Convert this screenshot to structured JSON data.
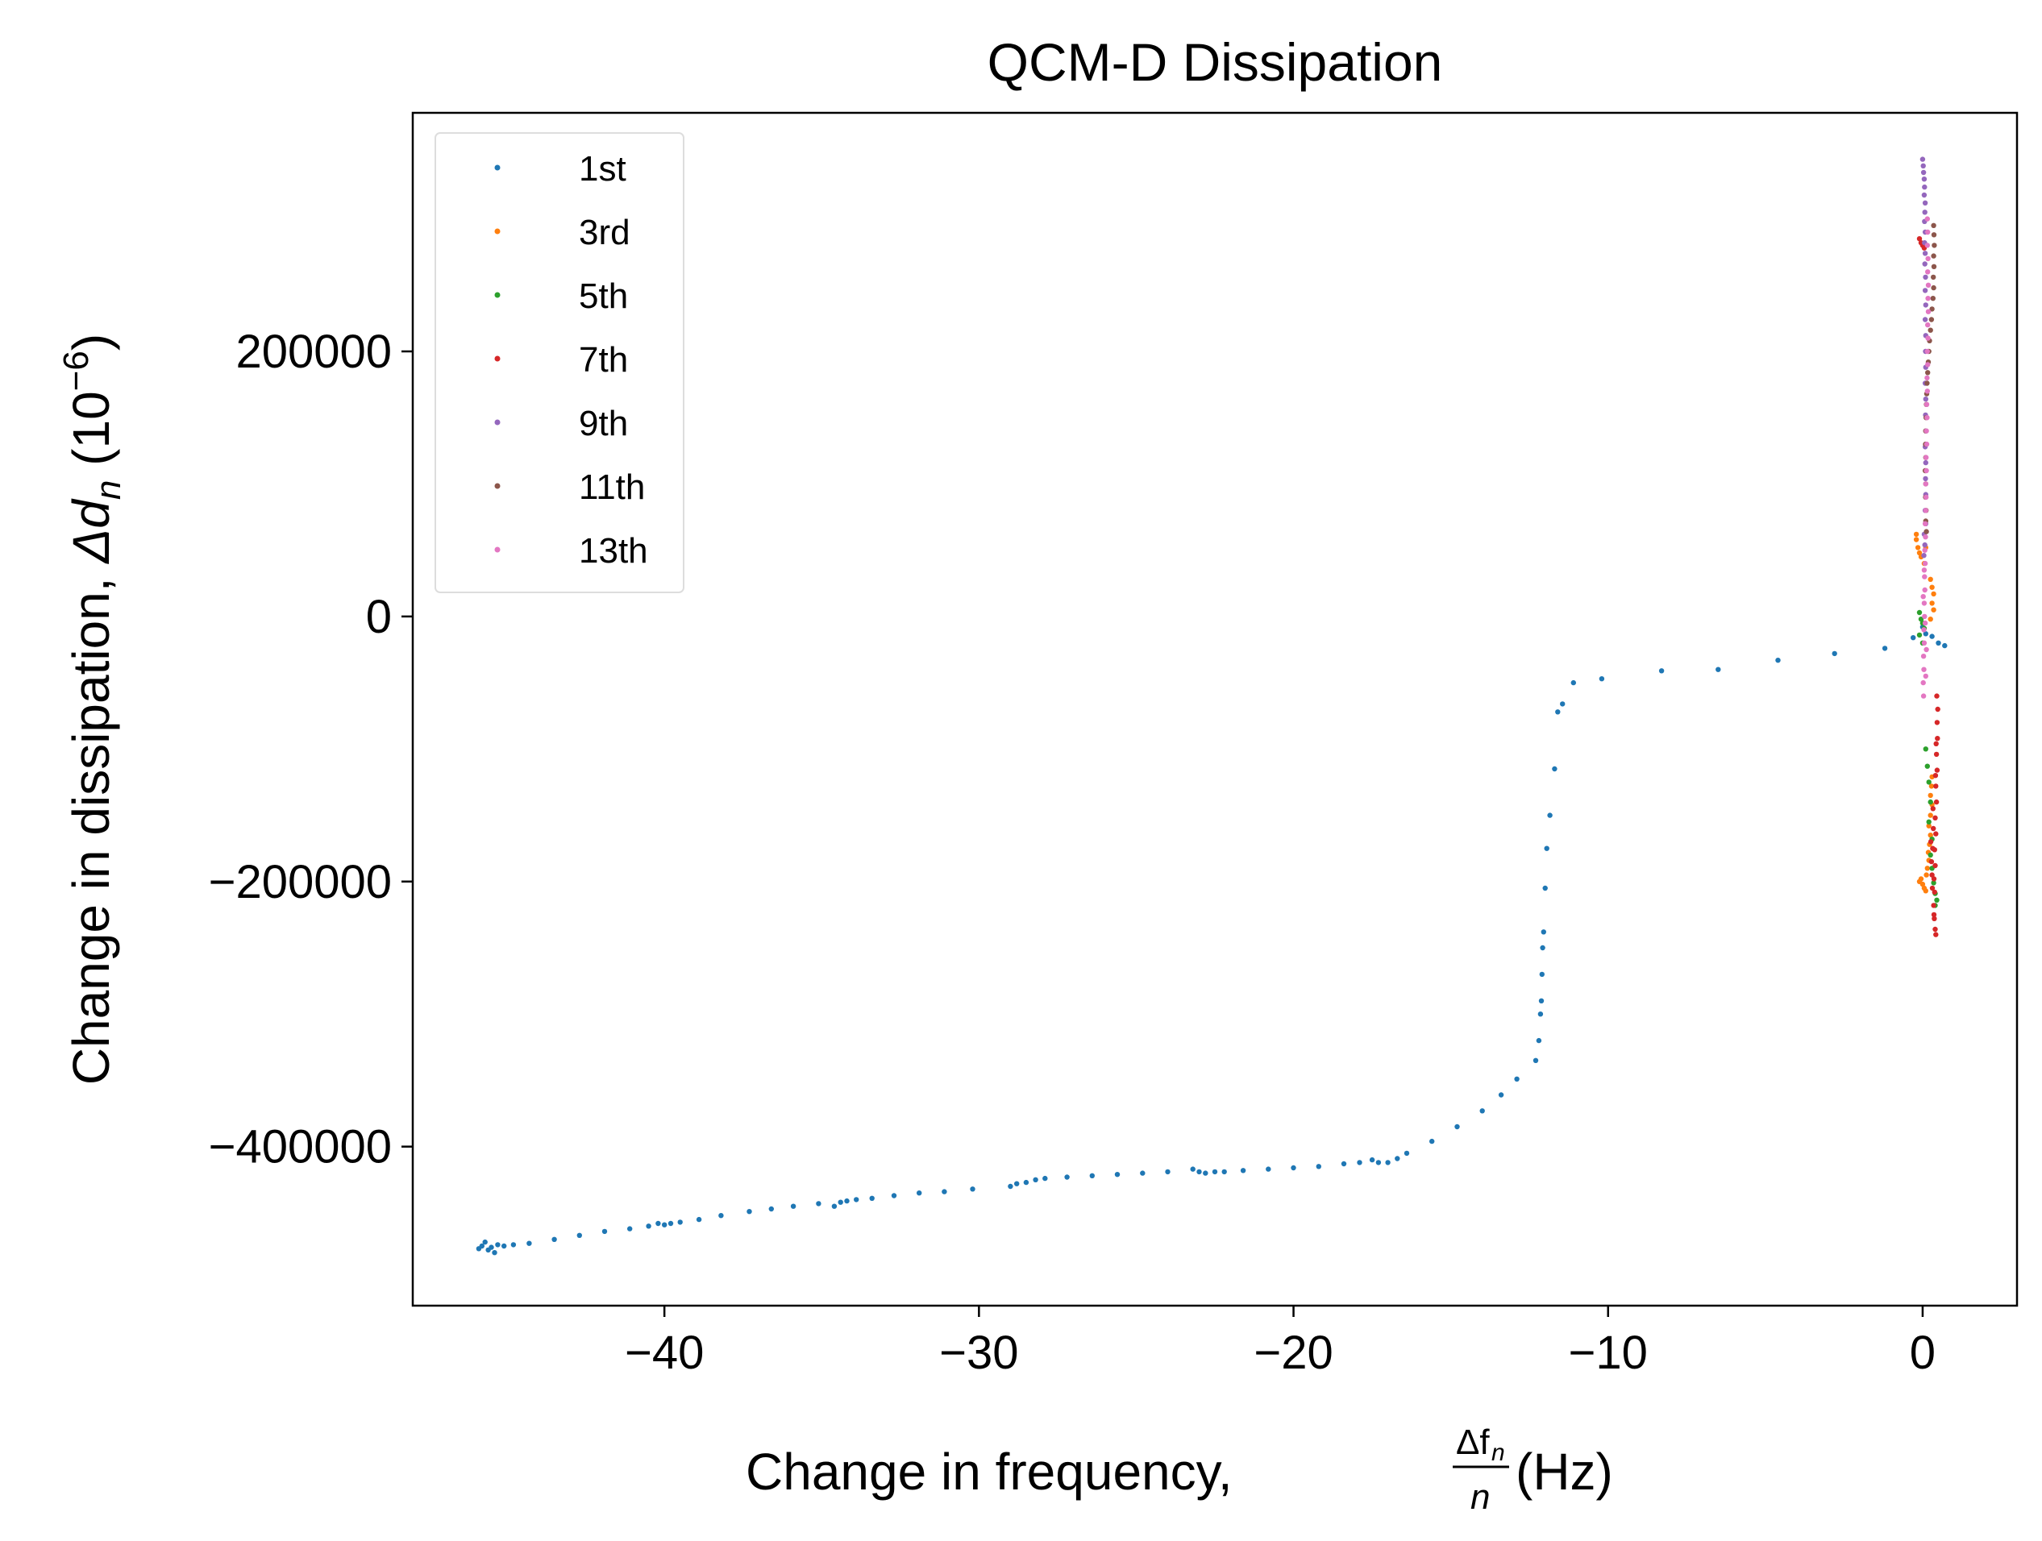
{
  "chart_data": {
    "type": "scatter",
    "title": "QCM-D Dissipation",
    "xlabel": {
      "prefix": "Change in frequency, ",
      "frac_num": "Δf",
      "frac_num_sub": "n",
      "frac_den": "n",
      "suffix": " (Hz)"
    },
    "ylabel": {
      "prefix": "Change in dissipation, ",
      "delta": "Δ",
      "var": "d",
      "var_sub": "n",
      "unit_open": " (10",
      "unit_exp": "−6",
      "unit_close": ")"
    },
    "xlim": [
      -48,
      3
    ],
    "ylim": [
      -520000,
      380000
    ],
    "xticks": [
      -40,
      -30,
      -20,
      -10,
      0
    ],
    "xtick_labels": [
      "−40",
      "−30",
      "−20",
      "−10",
      "0"
    ],
    "yticks": [
      -400000,
      -200000,
      0,
      200000
    ],
    "ytick_labels": [
      "−400000",
      "−200000",
      "0",
      "200000"
    ],
    "grid": false,
    "legend_position": "upper-left",
    "series": [
      {
        "name": "1st",
        "color": "#1f77b4",
        "points": [
          [
            -45.8,
            -475000
          ],
          [
            -45.6,
            -478000
          ],
          [
            -45.4,
            -480000
          ],
          [
            -45.7,
            -472000
          ],
          [
            -45.5,
            -476000
          ],
          [
            -45.3,
            -474000
          ],
          [
            -45.9,
            -477000
          ],
          [
            -45.1,
            -475000
          ],
          [
            -44.8,
            -474000
          ],
          [
            -44.3,
            -473000
          ],
          [
            -43.5,
            -470000
          ],
          [
            -42.7,
            -467000
          ],
          [
            -41.9,
            -464000
          ],
          [
            -41.1,
            -462000
          ],
          [
            -40.5,
            -460000
          ],
          [
            -40.2,
            -458000
          ],
          [
            -40.0,
            -459000
          ],
          [
            -39.8,
            -458000
          ],
          [
            -39.5,
            -457000
          ],
          [
            -38.9,
            -455000
          ],
          [
            -38.2,
            -452000
          ],
          [
            -37.3,
            -449000
          ],
          [
            -36.6,
            -447000
          ],
          [
            -35.9,
            -445000
          ],
          [
            -35.1,
            -443000
          ],
          [
            -34.6,
            -445000
          ],
          [
            -34.4,
            -442000
          ],
          [
            -34.2,
            -441000
          ],
          [
            -33.9,
            -440000
          ],
          [
            -33.4,
            -439000
          ],
          [
            -32.7,
            -437000
          ],
          [
            -31.9,
            -435000
          ],
          [
            -31.1,
            -434000
          ],
          [
            -30.2,
            -432000
          ],
          [
            -29.0,
            -430000
          ],
          [
            -28.8,
            -428000
          ],
          [
            -28.5,
            -427000
          ],
          [
            -28.2,
            -425000
          ],
          [
            -27.9,
            -424000
          ],
          [
            -27.2,
            -423000
          ],
          [
            -26.4,
            -422000
          ],
          [
            -25.6,
            -421000
          ],
          [
            -24.8,
            -420000
          ],
          [
            -24.0,
            -419000
          ],
          [
            -23.2,
            -417000
          ],
          [
            -23.0,
            -419000
          ],
          [
            -22.8,
            -420000
          ],
          [
            -22.5,
            -419000
          ],
          [
            -22.2,
            -419000
          ],
          [
            -21.6,
            -418000
          ],
          [
            -20.8,
            -417000
          ],
          [
            -20.0,
            -416000
          ],
          [
            -19.2,
            -415000
          ],
          [
            -18.4,
            -413000
          ],
          [
            -17.9,
            -412000
          ],
          [
            -17.5,
            -410000
          ],
          [
            -17.3,
            -412000
          ],
          [
            -17.0,
            -412000
          ],
          [
            -16.7,
            -409000
          ],
          [
            -16.4,
            -405000
          ],
          [
            -15.6,
            -396000
          ],
          [
            -14.8,
            -385000
          ],
          [
            -14.0,
            -373000
          ],
          [
            -13.4,
            -361000
          ],
          [
            -12.9,
            -349000
          ],
          [
            -12.3,
            -335000
          ],
          [
            -12.2,
            -320000
          ],
          [
            -12.15,
            -300000
          ],
          [
            -12.12,
            -290000
          ],
          [
            -12.1,
            -270000
          ],
          [
            -12.08,
            -250000
          ],
          [
            -12.05,
            -238000
          ],
          [
            -12.0,
            -205000
          ],
          [
            -11.95,
            -175000
          ],
          [
            -11.85,
            -150000
          ],
          [
            -11.7,
            -115000
          ],
          [
            -11.6,
            -72000
          ],
          [
            -11.45,
            -66000
          ],
          [
            -11.1,
            -50000
          ],
          [
            -10.2,
            -47000
          ],
          [
            -8.3,
            -41000
          ],
          [
            -6.5,
            -40000
          ],
          [
            -4.6,
            -33000
          ],
          [
            -2.8,
            -28000
          ],
          [
            -1.2,
            -24000
          ],
          [
            -0.3,
            -16000
          ],
          [
            0.1,
            -13000
          ],
          [
            0.3,
            -15000
          ],
          [
            0.5,
            -20000
          ],
          [
            0.7,
            -22000
          ],
          [
            0.0,
            -8000
          ]
        ]
      },
      {
        "name": "3rd",
        "color": "#ff7f0e",
        "points": [
          [
            -0.2,
            58000
          ],
          [
            -0.15,
            52000
          ],
          [
            -0.1,
            48000
          ],
          [
            -0.05,
            45000
          ],
          [
            0.05,
            40000
          ],
          [
            -0.2,
            62000
          ],
          [
            0.1,
            52000
          ],
          [
            0.25,
            28000
          ],
          [
            0.3,
            22000
          ],
          [
            0.35,
            17000
          ],
          [
            0.3,
            10000
          ],
          [
            0.35,
            5000
          ],
          [
            0.25,
            -2000
          ],
          [
            -0.05,
            -198000
          ],
          [
            -0.1,
            -200000
          ],
          [
            0.0,
            -202000
          ],
          [
            0.05,
            -205000
          ],
          [
            0.1,
            -207000
          ],
          [
            0.12,
            -195000
          ],
          [
            0.15,
            -190000
          ],
          [
            0.2,
            -184000
          ],
          [
            0.18,
            -178000
          ],
          [
            0.22,
            -172000
          ],
          [
            0.25,
            -165000
          ],
          [
            0.2,
            -158000
          ],
          [
            0.25,
            -150000
          ],
          [
            0.3,
            -142000
          ],
          [
            0.25,
            -135000
          ],
          [
            0.28,
            -128000
          ],
          [
            0.3,
            -121000
          ]
        ]
      },
      {
        "name": "5th",
        "color": "#2ca02c",
        "points": [
          [
            -0.1,
            3000
          ],
          [
            -0.05,
            -2000
          ],
          [
            0.0,
            -5000
          ],
          [
            0.05,
            -9000
          ],
          [
            -0.1,
            -14000
          ],
          [
            0.0,
            -20000
          ],
          [
            0.1,
            -100000
          ],
          [
            0.15,
            -113000
          ],
          [
            0.2,
            -125000
          ],
          [
            0.25,
            -140000
          ],
          [
            0.2,
            -155000
          ],
          [
            0.3,
            -168000
          ],
          [
            0.25,
            -180000
          ],
          [
            0.3,
            -190000
          ],
          [
            0.35,
            -201000
          ],
          [
            0.4,
            -209000
          ],
          [
            0.45,
            -214000
          ],
          [
            0.4,
            -218000
          ]
        ]
      },
      {
        "name": "7th",
        "color": "#d62728",
        "points": [
          [
            -0.1,
            285000
          ],
          [
            -0.05,
            282000
          ],
          [
            0.0,
            280000
          ],
          [
            0.05,
            278000
          ],
          [
            0.45,
            -60000
          ],
          [
            0.48,
            -70000
          ],
          [
            0.46,
            -80000
          ],
          [
            0.47,
            -92000
          ],
          [
            0.44,
            -104000
          ],
          [
            0.46,
            -116000
          ],
          [
            0.42,
            -128000
          ],
          [
            0.44,
            -140000
          ],
          [
            0.4,
            -152000
          ],
          [
            0.42,
            -164000
          ],
          [
            0.38,
            -176000
          ],
          [
            0.4,
            -188000
          ],
          [
            0.36,
            -198000
          ],
          [
            0.38,
            -208000
          ],
          [
            0.35,
            -218000
          ],
          [
            0.37,
            -228000
          ],
          [
            0.4,
            -236000
          ],
          [
            0.42,
            -240000
          ],
          [
            0.3,
            -195000
          ],
          [
            0.32,
            -175000
          ],
          [
            0.34,
            -160000
          ],
          [
            0.28,
            -185000
          ],
          [
            0.31,
            -205000
          ],
          [
            0.36,
            -225000
          ],
          [
            0.26,
            -170000
          ],
          [
            0.33,
            -145000
          ],
          [
            0.41,
            -120000
          ],
          [
            0.43,
            -96000
          ]
        ]
      },
      {
        "name": "9th",
        "color": "#9467bd",
        "points": [
          [
            0.0,
            345000
          ],
          [
            0.02,
            340000
          ],
          [
            0.03,
            335000
          ],
          [
            0.05,
            330000
          ],
          [
            0.06,
            324000
          ],
          [
            0.05,
            318000
          ],
          [
            0.08,
            312000
          ],
          [
            0.07,
            305000
          ],
          [
            0.06,
            298000
          ],
          [
            0.08,
            290000
          ],
          [
            0.06,
            282000
          ],
          [
            0.08,
            274000
          ],
          [
            0.07,
            266000
          ],
          [
            0.09,
            256000
          ],
          [
            0.08,
            246000
          ],
          [
            0.1,
            235000
          ],
          [
            0.08,
            224000
          ],
          [
            0.1,
            212000
          ],
          [
            0.09,
            200000
          ],
          [
            0.1,
            188000
          ],
          [
            0.08,
            176000
          ],
          [
            0.1,
            164000
          ],
          [
            0.09,
            152000
          ],
          [
            0.1,
            140000
          ],
          [
            0.08,
            128000
          ],
          [
            0.1,
            116000
          ],
          [
            0.09,
            104000
          ],
          [
            0.1,
            92000
          ],
          [
            0.08,
            80000
          ],
          [
            0.1,
            70000
          ],
          [
            0.05,
            62000
          ],
          [
            0.07,
            54000
          ],
          [
            0.04,
            46000
          ]
        ]
      },
      {
        "name": "11th",
        "color": "#8c564b",
        "points": [
          [
            0.35,
            295000
          ],
          [
            0.36,
            288000
          ],
          [
            0.37,
            280000
          ],
          [
            0.35,
            272000
          ],
          [
            0.36,
            264000
          ],
          [
            0.34,
            256000
          ],
          [
            0.35,
            248000
          ],
          [
            0.33,
            240000
          ],
          [
            0.3,
            232000
          ],
          [
            0.28,
            224000
          ],
          [
            0.25,
            216000
          ],
          [
            0.22,
            208000
          ],
          [
            0.2,
            200000
          ],
          [
            0.18,
            192000
          ],
          [
            0.16,
            184000
          ],
          [
            0.14,
            176000
          ],
          [
            0.13,
            168000
          ],
          [
            0.12,
            160000
          ],
          [
            0.11,
            150000
          ],
          [
            0.1,
            140000
          ],
          [
            0.09,
            130000
          ],
          [
            0.1,
            120000
          ],
          [
            0.08,
            110000
          ],
          [
            0.1,
            100000
          ],
          [
            0.09,
            90000
          ],
          [
            0.11,
            80000
          ],
          [
            0.1,
            72000
          ],
          [
            0.12,
            64000
          ]
        ]
      },
      {
        "name": "13th",
        "color": "#e377c2",
        "points": [
          [
            0.15,
            300000
          ],
          [
            0.16,
            290000
          ],
          [
            0.15,
            280000
          ],
          [
            0.17,
            270000
          ],
          [
            0.16,
            260000
          ],
          [
            0.18,
            250000
          ],
          [
            0.17,
            240000
          ],
          [
            0.18,
            230000
          ],
          [
            0.16,
            220000
          ],
          [
            0.17,
            210000
          ],
          [
            0.15,
            200000
          ],
          [
            0.16,
            190000
          ],
          [
            0.14,
            180000
          ],
          [
            0.15,
            170000
          ],
          [
            0.13,
            160000
          ],
          [
            0.14,
            150000
          ],
          [
            0.12,
            140000
          ],
          [
            0.13,
            130000
          ],
          [
            0.11,
            120000
          ],
          [
            0.12,
            110000
          ],
          [
            0.1,
            100000
          ],
          [
            0.11,
            90000
          ],
          [
            0.1,
            80000
          ],
          [
            0.08,
            70000
          ],
          [
            0.09,
            60000
          ],
          [
            0.07,
            50000
          ],
          [
            0.08,
            40000
          ],
          [
            0.06,
            30000
          ],
          [
            0.07,
            20000
          ],
          [
            0.05,
            10000
          ],
          [
            0.06,
            0
          ],
          [
            0.04,
            -10000
          ],
          [
            0.05,
            -20000
          ],
          [
            0.03,
            -30000
          ],
          [
            0.04,
            -40000
          ],
          [
            0.02,
            -50000
          ],
          [
            0.03,
            -60000
          ],
          [
            0.1,
            -45000
          ],
          [
            0.12,
            -25000
          ],
          [
            0.08,
            -5000
          ],
          [
            0.02,
            15000
          ],
          [
            0.05,
            35000
          ]
        ]
      }
    ]
  }
}
